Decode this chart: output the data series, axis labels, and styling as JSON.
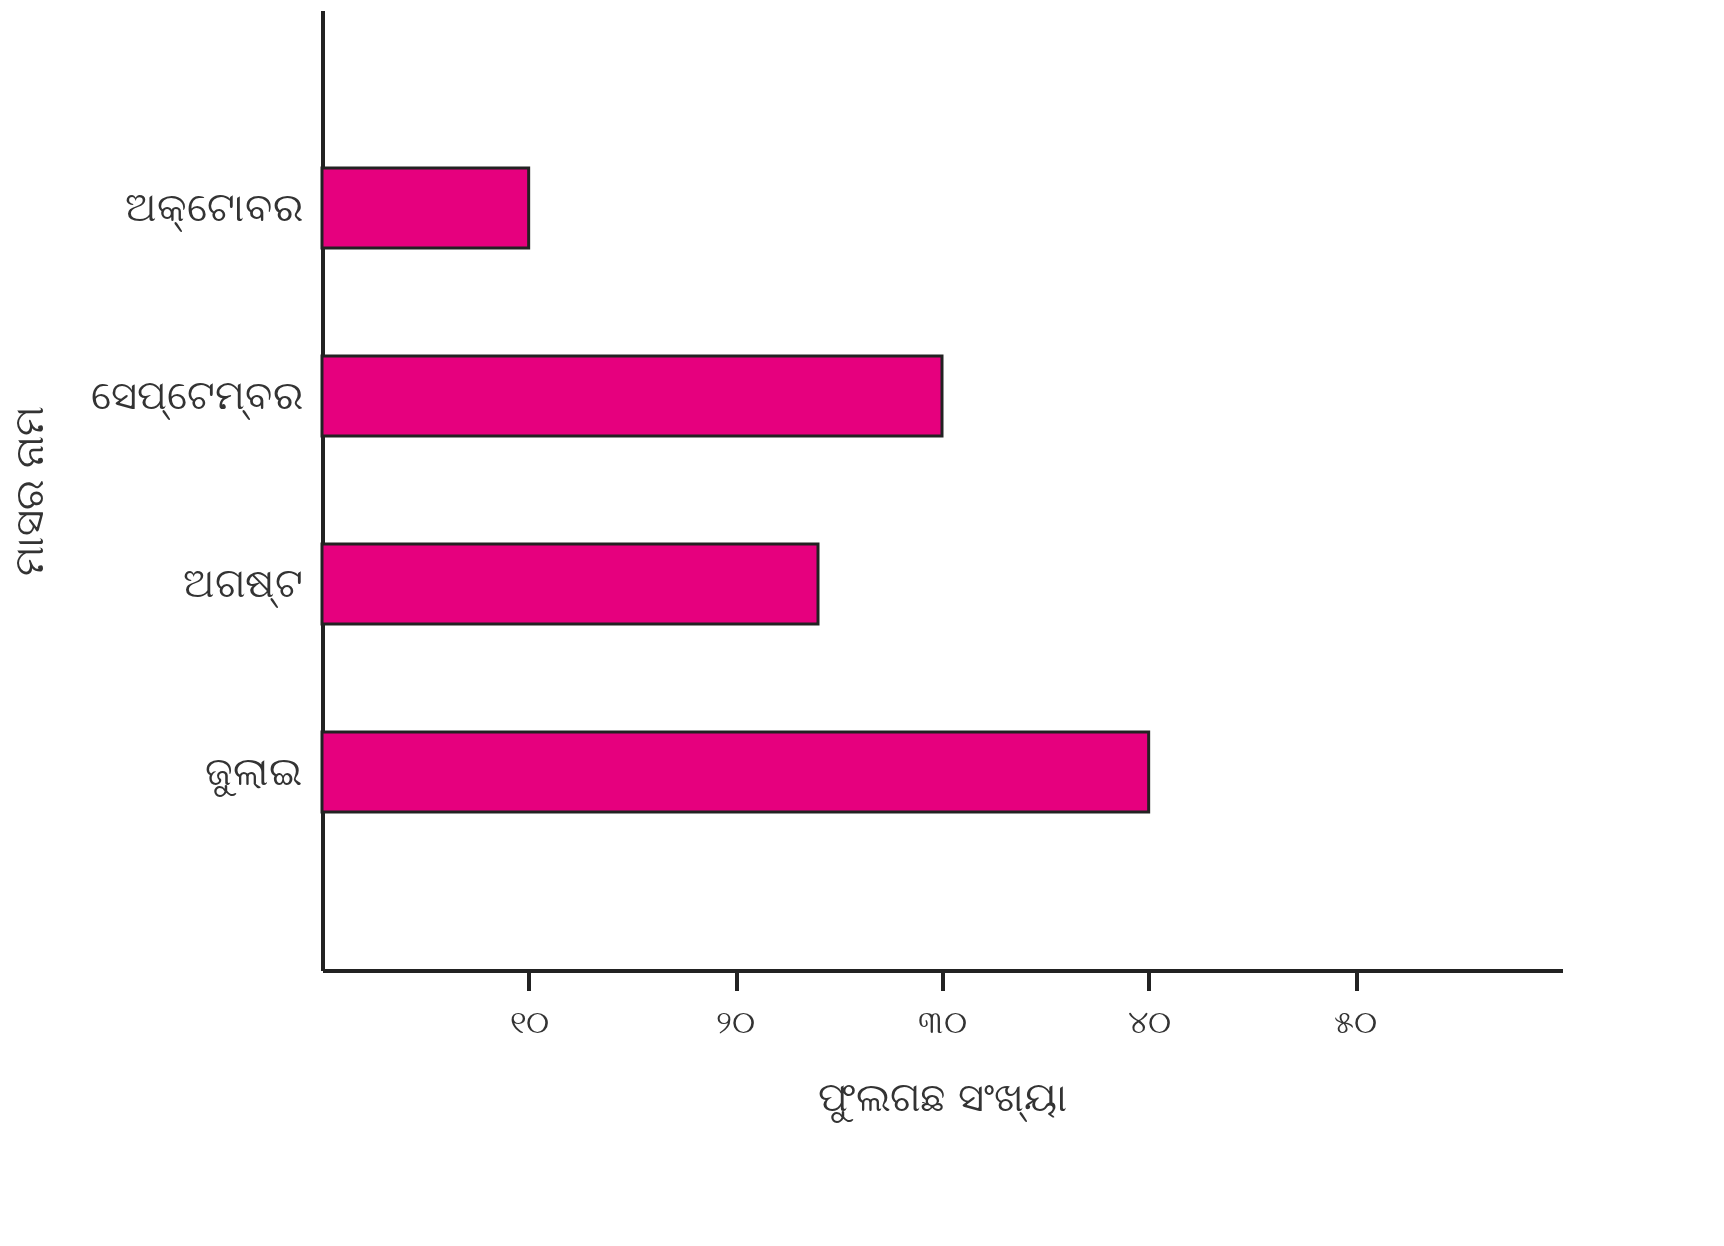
{
  "chart_data": {
    "type": "bar",
    "orientation": "horizontal",
    "categories": [
      "ଅକ୍ଟୋବର",
      "ସେପ୍ଟେମ୍ବର",
      "ଅଗଷ୍ଟ",
      "ଜୁଲାଇ"
    ],
    "values": [
      10,
      30,
      24,
      40
    ],
    "color": "#e6007e",
    "xlabel": "ଫୁଲଗଛ ସଂଖ୍ୟା",
    "ylabel": "ମାସର ନାମ",
    "xlim": [
      0,
      60
    ],
    "xticks": [
      {
        "value": 10,
        "label": "୧୦"
      },
      {
        "value": 20,
        "label": "୨୦"
      },
      {
        "value": 30,
        "label": "୩୦"
      },
      {
        "value": 40,
        "label": "୪୦"
      },
      {
        "value": 50,
        "label": "୫୦"
      }
    ],
    "grid": false
  }
}
